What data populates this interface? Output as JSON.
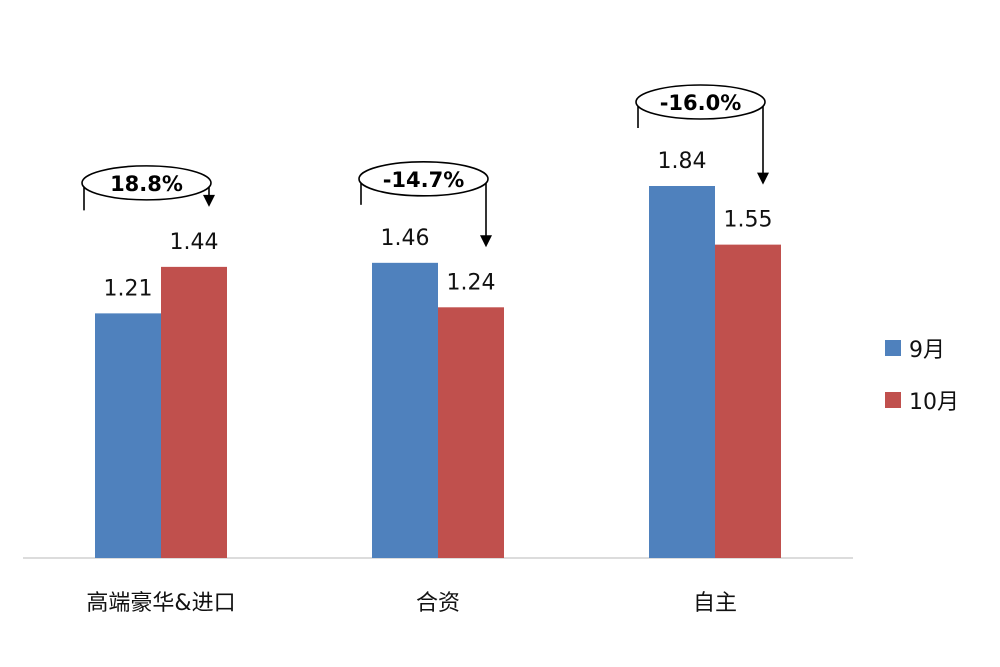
{
  "chart_data": {
    "type": "bar",
    "categories": [
      "高端豪华&进口",
      "合资",
      "自主"
    ],
    "series": [
      {
        "name": "9月",
        "values": [
          1.21,
          1.46,
          1.84
        ],
        "color": "#4f81bd"
      },
      {
        "name": "10月",
        "values": [
          1.44,
          1.24,
          1.55
        ],
        "color": "#c0504d"
      }
    ],
    "data_labels": [
      [
        "1.21",
        "1.46",
        "1.84"
      ],
      [
        "1.44",
        "1.24",
        "1.55"
      ]
    ],
    "annotations": [
      "18.8%",
      "-14.7%",
      "-16.0%"
    ],
    "ylim": [
      0,
      2.7
    ],
    "grid": false,
    "legend": "right",
    "title": "",
    "xlabel": "",
    "ylabel": ""
  }
}
